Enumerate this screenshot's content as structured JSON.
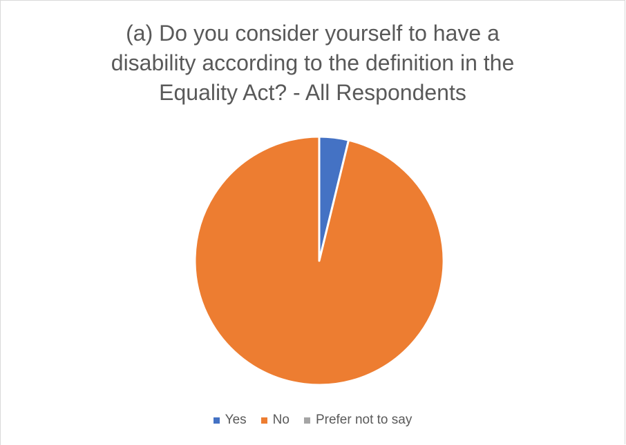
{
  "chart_data": {
    "type": "pie",
    "title_lines": [
      "(a) Do you consider yourself to have a",
      "disability according to the definition in the",
      "Equality Act? - All Respondents"
    ],
    "categories": [
      "Yes",
      "No",
      "Prefer not to say"
    ],
    "values": [
      3.8,
      96.2,
      0
    ],
    "colors": [
      "#4472c4",
      "#ed7d31",
      "#a5a5a5"
    ],
    "legend_position": "bottom",
    "start_angle": "12 o'clock, clockwise"
  }
}
